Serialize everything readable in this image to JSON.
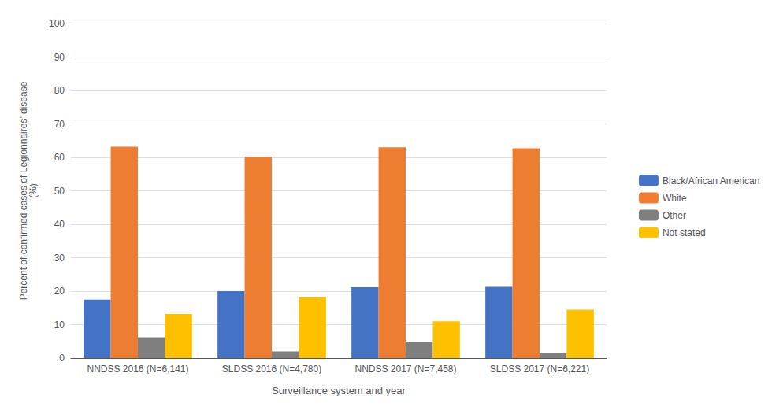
{
  "chart_data": {
    "type": "bar",
    "categories": [
      "NNDSS 2016 (N=6,141)",
      "SLDSS 2016 (N=4,780)",
      "NNDSS 2017 (N=7,458)",
      "SLDSS 2017 (N=6,221)"
    ],
    "series": [
      {
        "name": "Black/African American",
        "color": "#4472C4",
        "values": [
          17.5,
          20.0,
          21.2,
          21.3
        ]
      },
      {
        "name": "White",
        "color": "#ED7D31",
        "values": [
          63.2,
          60.2,
          63.0,
          62.7
        ]
      },
      {
        "name": "Other",
        "color": "#7F7F7F",
        "values": [
          6.0,
          2.0,
          4.7,
          1.4
        ]
      },
      {
        "name": "Not stated",
        "color": "#FFC000",
        "values": [
          13.2,
          18.2,
          11.0,
          14.5
        ]
      }
    ],
    "xlabel": "Surveillance system and year",
    "ylabel": "Percent of confirmed cases of Legionnaires’ disease\n(%)",
    "ylim": [
      0,
      100
    ],
    "yticks": [
      0,
      10,
      20,
      30,
      40,
      50,
      60,
      70,
      80,
      90,
      100
    ],
    "grid": true,
    "legend": "right"
  }
}
